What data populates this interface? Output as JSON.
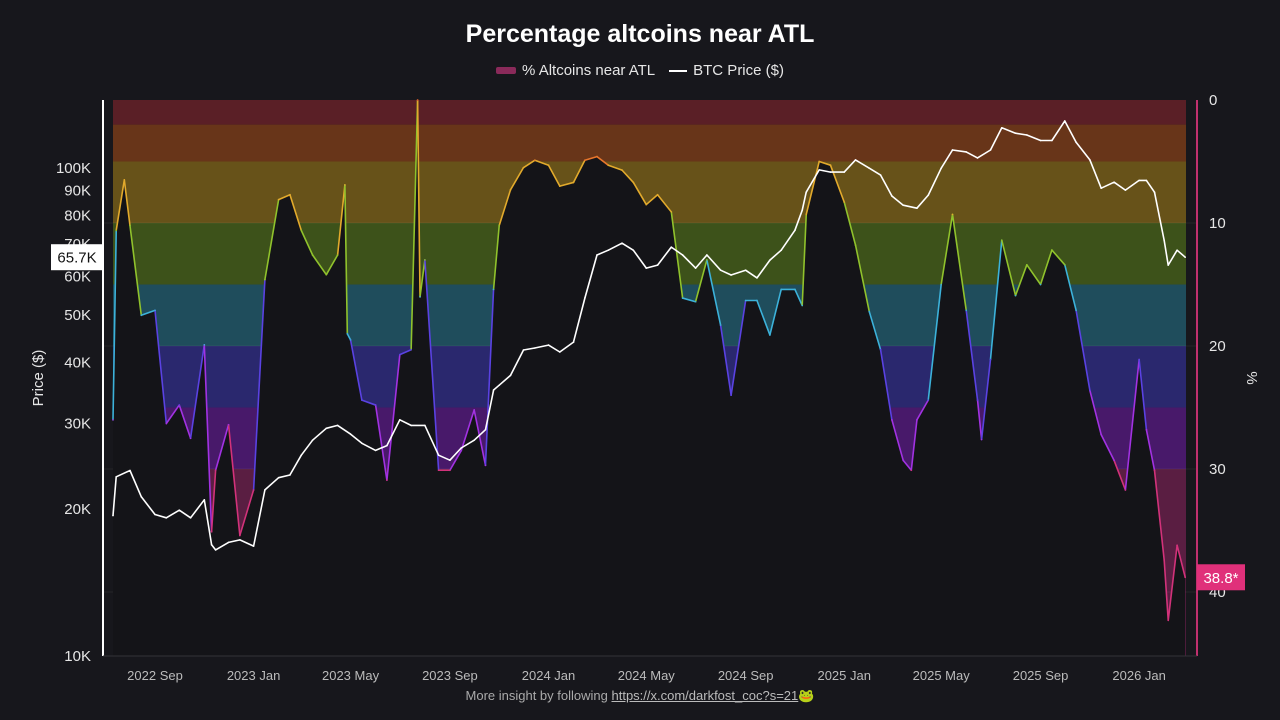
{
  "chart_data": {
    "type": "area+line",
    "title": "Percentage altcoins near ATL",
    "legend": [
      {
        "name": "% Altcoins near ATL",
        "color": "#8a2a5a"
      },
      {
        "name": "BTC Price ($)",
        "color": "#ffffff"
      }
    ],
    "legend_placement": "top-center",
    "x_ticks": [
      "2022 Sep",
      "2023 Jan",
      "2023 May",
      "2023 Sep",
      "2024 Jan",
      "2024 May",
      "2024 Sep",
      "2025 Jan",
      "2025 May",
      "2025 Sep",
      "2026 Jan"
    ],
    "x_tick_dates": [
      "2022-09-01",
      "2023-01-01",
      "2023-05-01",
      "2023-09-01",
      "2024-01-01",
      "2024-05-01",
      "2024-09-01",
      "2025-01-01",
      "2025-05-01",
      "2025-09-01",
      "2026-01-01"
    ],
    "x_range": [
      "2022-07-11",
      "2026-02-28"
    ],
    "left_axis": {
      "label": "Price ($)",
      "scale": "log",
      "range": [
        10000,
        138000
      ],
      "ticks": [
        10000,
        20000,
        30000,
        40000,
        50000,
        60000,
        70000,
        80000,
        90000,
        100000
      ],
      "tick_labels": [
        "10K",
        "20K",
        "30K",
        "40K",
        "50K",
        "60K",
        "70K",
        "80K",
        "90K",
        "100K"
      ],
      "current_label": "65.7K",
      "current_value": 65700
    },
    "right_axis": {
      "label": "%",
      "inverted": true,
      "range": [
        0,
        45.2
      ],
      "ticks": [
        0,
        10,
        20,
        30,
        40
      ],
      "tick_labels": [
        "0",
        "10",
        "20",
        "30",
        "40"
      ],
      "current_label": "38.8*",
      "current_value": 38.8,
      "current_color": "#e0307a"
    },
    "bands": [
      {
        "from": 0,
        "to": 2,
        "bg": "#5a1f26",
        "line": "#e0402e"
      },
      {
        "from": 2,
        "to": 5,
        "bg": "#683519",
        "line": "#e8762c"
      },
      {
        "from": 5,
        "to": 10,
        "bg": "#675219",
        "line": "#e2aa2c"
      },
      {
        "from": 10,
        "to": 15,
        "bg": "#3d521a",
        "line": "#90c22c"
      },
      {
        "from": 15,
        "to": 20,
        "bg": "#1f4d5c",
        "line": "#3cb2da"
      },
      {
        "from": 20,
        "to": 25,
        "bg": "#2a286e",
        "line": "#5a42e2"
      },
      {
        "from": 25,
        "to": 30,
        "bg": "#48196a",
        "line": "#a232e2"
      },
      {
        "from": 30,
        "to": 45.2,
        "bg": "#5a1e42",
        "line": "#d2327a"
      }
    ],
    "grid": true,
    "series": [
      {
        "name": "% Altcoins near ATL",
        "axis": "right",
        "points": [
          [
            "2022-07-11",
            26.0
          ],
          [
            "2022-07-15",
            10.6
          ],
          [
            "2022-07-25",
            6.5
          ],
          [
            "2022-08-01",
            10.2
          ],
          [
            "2022-08-15",
            17.5
          ],
          [
            "2022-09-01",
            17.1
          ],
          [
            "2022-09-15",
            26.3
          ],
          [
            "2022-10-01",
            24.8
          ],
          [
            "2022-10-15",
            27.5
          ],
          [
            "2022-11-01",
            19.9
          ],
          [
            "2022-11-10",
            35.1
          ],
          [
            "2022-11-15",
            30.1
          ],
          [
            "2022-12-01",
            26.4
          ],
          [
            "2022-12-15",
            35.4
          ],
          [
            "2023-01-01",
            31.7
          ],
          [
            "2023-01-15",
            14.6
          ],
          [
            "2023-02-01",
            8.1
          ],
          [
            "2023-02-15",
            7.7
          ],
          [
            "2023-03-01",
            10.6
          ],
          [
            "2023-03-15",
            12.6
          ],
          [
            "2023-04-01",
            14.2
          ],
          [
            "2023-04-15",
            12.6
          ],
          [
            "2023-04-24",
            6.9
          ],
          [
            "2023-04-27",
            19.0
          ],
          [
            "2023-05-01",
            19.5
          ],
          [
            "2023-05-15",
            24.4
          ],
          [
            "2023-06-01",
            24.8
          ],
          [
            "2023-06-15",
            30.9
          ],
          [
            "2023-07-01",
            20.7
          ],
          [
            "2023-07-15",
            20.3
          ],
          [
            "2023-07-23",
            0.0
          ],
          [
            "2023-07-26",
            16.0
          ],
          [
            "2023-08-01",
            13.0
          ],
          [
            "2023-08-18",
            30.1
          ],
          [
            "2023-09-01",
            30.1
          ],
          [
            "2023-09-15",
            28.5
          ],
          [
            "2023-10-01",
            25.2
          ],
          [
            "2023-10-15",
            29.7
          ],
          [
            "2023-10-25",
            15.4
          ],
          [
            "2023-11-01",
            10.2
          ],
          [
            "2023-11-15",
            7.3
          ],
          [
            "2023-12-01",
            5.5
          ],
          [
            "2023-12-15",
            4.9
          ],
          [
            "2024-01-01",
            5.3
          ],
          [
            "2024-01-15",
            7.0
          ],
          [
            "2024-02-01",
            6.7
          ],
          [
            "2024-02-15",
            4.9
          ],
          [
            "2024-03-01",
            4.6
          ],
          [
            "2024-03-15",
            5.3
          ],
          [
            "2024-04-01",
            5.7
          ],
          [
            "2024-04-15",
            6.7
          ],
          [
            "2024-05-01",
            8.5
          ],
          [
            "2024-05-15",
            7.7
          ],
          [
            "2024-06-01",
            9.1
          ],
          [
            "2024-06-15",
            16.1
          ],
          [
            "2024-07-01",
            16.4
          ],
          [
            "2024-07-15",
            13.0
          ],
          [
            "2024-08-01",
            18.3
          ],
          [
            "2024-08-14",
            24.0
          ],
          [
            "2024-09-01",
            16.3
          ],
          [
            "2024-09-15",
            16.3
          ],
          [
            "2024-10-01",
            19.1
          ],
          [
            "2024-10-15",
            15.4
          ],
          [
            "2024-11-01",
            15.4
          ],
          [
            "2024-11-10",
            16.7
          ],
          [
            "2024-11-15",
            9.3
          ],
          [
            "2024-12-01",
            5.0
          ],
          [
            "2024-12-15",
            5.3
          ],
          [
            "2025-01-01",
            8.3
          ],
          [
            "2025-01-15",
            11.8
          ],
          [
            "2025-02-01",
            17.2
          ],
          [
            "2025-02-15",
            20.3
          ],
          [
            "2025-03-01",
            26.0
          ],
          [
            "2025-03-15",
            29.3
          ],
          [
            "2025-03-25",
            30.1
          ],
          [
            "2025-04-01",
            26.0
          ],
          [
            "2025-04-15",
            24.4
          ],
          [
            "2025-05-01",
            15.0
          ],
          [
            "2025-05-15",
            9.3
          ],
          [
            "2025-06-01",
            17.1
          ],
          [
            "2025-06-15",
            24.4
          ],
          [
            "2025-06-20",
            27.6
          ],
          [
            "2025-07-01",
            21.1
          ],
          [
            "2025-07-15",
            11.4
          ],
          [
            "2025-08-01",
            15.9
          ],
          [
            "2025-08-15",
            13.4
          ],
          [
            "2025-09-01",
            15.0
          ],
          [
            "2025-09-15",
            12.2
          ],
          [
            "2025-10-01",
            13.4
          ],
          [
            "2025-10-15",
            17.1
          ],
          [
            "2025-11-01",
            23.6
          ],
          [
            "2025-11-15",
            27.2
          ],
          [
            "2025-12-01",
            29.3
          ],
          [
            "2025-12-15",
            31.7
          ],
          [
            "2026-01-01",
            21.1
          ],
          [
            "2026-01-10",
            26.8
          ],
          [
            "2026-01-20",
            30.1
          ],
          [
            "2026-02-01",
            37.4
          ],
          [
            "2026-02-06",
            42.3
          ],
          [
            "2026-02-17",
            36.2
          ],
          [
            "2026-02-27",
            38.8
          ]
        ]
      },
      {
        "name": "BTC Price ($)",
        "axis": "left",
        "points": [
          [
            "2022-07-11",
            19400
          ],
          [
            "2022-07-15",
            23300
          ],
          [
            "2022-08-01",
            24000
          ],
          [
            "2022-08-15",
            21200
          ],
          [
            "2022-09-01",
            19500
          ],
          [
            "2022-09-15",
            19200
          ],
          [
            "2022-10-01",
            19900
          ],
          [
            "2022-10-15",
            19200
          ],
          [
            "2022-11-01",
            20900
          ],
          [
            "2022-11-10",
            16900
          ],
          [
            "2022-11-15",
            16500
          ],
          [
            "2022-12-01",
            17100
          ],
          [
            "2022-12-15",
            17300
          ],
          [
            "2023-01-01",
            16800
          ],
          [
            "2023-01-15",
            21900
          ],
          [
            "2023-02-01",
            23200
          ],
          [
            "2023-02-15",
            23500
          ],
          [
            "2023-03-01",
            25800
          ],
          [
            "2023-03-15",
            27700
          ],
          [
            "2023-04-01",
            29300
          ],
          [
            "2023-04-15",
            29700
          ],
          [
            "2023-05-01",
            28500
          ],
          [
            "2023-05-15",
            27300
          ],
          [
            "2023-06-01",
            26400
          ],
          [
            "2023-06-15",
            27000
          ],
          [
            "2023-07-01",
            30500
          ],
          [
            "2023-07-15",
            29700
          ],
          [
            "2023-08-01",
            29700
          ],
          [
            "2023-08-18",
            25800
          ],
          [
            "2023-09-01",
            25200
          ],
          [
            "2023-09-15",
            26700
          ],
          [
            "2023-10-01",
            27700
          ],
          [
            "2023-10-15",
            29100
          ],
          [
            "2023-10-25",
            35100
          ],
          [
            "2023-11-01",
            35900
          ],
          [
            "2023-11-15",
            37600
          ],
          [
            "2023-12-01",
            42400
          ],
          [
            "2023-12-15",
            42800
          ],
          [
            "2024-01-01",
            43400
          ],
          [
            "2024-01-15",
            42000
          ],
          [
            "2024-02-01",
            44000
          ],
          [
            "2024-02-15",
            54200
          ],
          [
            "2024-03-01",
            66400
          ],
          [
            "2024-03-15",
            67900
          ],
          [
            "2024-04-01",
            70200
          ],
          [
            "2024-04-15",
            67900
          ],
          [
            "2024-05-01",
            62400
          ],
          [
            "2024-05-15",
            63300
          ],
          [
            "2024-06-01",
            68900
          ],
          [
            "2024-06-15",
            66400
          ],
          [
            "2024-07-01",
            62400
          ],
          [
            "2024-07-15",
            66400
          ],
          [
            "2024-08-01",
            61800
          ],
          [
            "2024-08-14",
            60400
          ],
          [
            "2024-09-01",
            61800
          ],
          [
            "2024-09-15",
            59600
          ],
          [
            "2024-10-01",
            64800
          ],
          [
            "2024-10-15",
            67900
          ],
          [
            "2024-11-01",
            74600
          ],
          [
            "2024-11-10",
            82000
          ],
          [
            "2024-11-15",
            89300
          ],
          [
            "2024-12-01",
            99200
          ],
          [
            "2024-12-15",
            98200
          ],
          [
            "2025-01-01",
            98200
          ],
          [
            "2025-01-15",
            104000
          ],
          [
            "2025-02-01",
            100000
          ],
          [
            "2025-02-15",
            96800
          ],
          [
            "2025-03-01",
            87700
          ],
          [
            "2025-03-15",
            84000
          ],
          [
            "2025-04-01",
            82800
          ],
          [
            "2025-04-15",
            88100
          ],
          [
            "2025-05-01",
            100000
          ],
          [
            "2025-05-15",
            109000
          ],
          [
            "2025-06-01",
            108000
          ],
          [
            "2025-06-15",
            105000
          ],
          [
            "2025-07-01",
            109000
          ],
          [
            "2025-07-15",
            121000
          ],
          [
            "2025-08-01",
            118000
          ],
          [
            "2025-08-15",
            117000
          ],
          [
            "2025-09-01",
            114000
          ],
          [
            "2025-09-15",
            114000
          ],
          [
            "2025-10-01",
            125000
          ],
          [
            "2025-10-15",
            113000
          ],
          [
            "2025-11-01",
            104000
          ],
          [
            "2025-11-15",
            91000
          ],
          [
            "2025-12-01",
            93600
          ],
          [
            "2025-12-15",
            90200
          ],
          [
            "2026-01-01",
            94400
          ],
          [
            "2026-01-10",
            94400
          ],
          [
            "2026-01-20",
            89300
          ],
          [
            "2026-02-01",
            71100
          ],
          [
            "2026-02-06",
            63300
          ],
          [
            "2026-02-17",
            67900
          ],
          [
            "2026-02-27",
            65700
          ]
        ]
      }
    ]
  },
  "footer": {
    "text": "More insight by following ",
    "link": "https://x.com/darkfost_coc?s=21",
    "emoji": "🐸"
  }
}
